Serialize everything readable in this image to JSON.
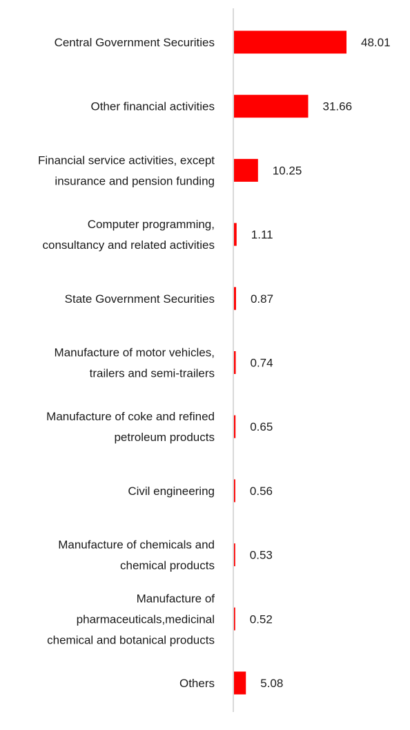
{
  "chart_data": {
    "type": "bar",
    "orientation": "horizontal",
    "categories": [
      "Central Government Securities",
      "Other financial activities",
      "Financial service activities, except insurance and pension funding",
      "Computer programming, consultancy and related activities",
      "State Government Securities",
      "Manufacture of motor vehicles, trailers and semi-trailers",
      "Manufacture of coke and refined petroleum products",
      "Civil engineering",
      "Manufacture of chemicals and chemical products",
      "Manufacture of pharmaceuticals,medicinal chemical and botanical products",
      "Others"
    ],
    "category_lines": [
      [
        "Central Government Securities"
      ],
      [
        "Other financial activities"
      ],
      [
        "Financial service activities, except",
        "insurance and pension funding"
      ],
      [
        "Computer programming,",
        "consultancy and related activities"
      ],
      [
        "State Government Securities"
      ],
      [
        "Manufacture of motor vehicles,",
        "trailers and semi-trailers"
      ],
      [
        "Manufacture of coke and refined",
        "petroleum products"
      ],
      [
        "Civil engineering"
      ],
      [
        "Manufacture of chemicals and",
        "chemical products"
      ],
      [
        "Manufacture of",
        "pharmaceuticals,medicinal",
        "chemical and botanical products"
      ],
      [
        "Others"
      ]
    ],
    "values": [
      48.01,
      31.66,
      10.25,
      1.11,
      0.87,
      0.74,
      0.65,
      0.56,
      0.53,
      0.52,
      5.08
    ],
    "value_labels": [
      "48.01",
      "31.66",
      "10.25",
      "1.11",
      "0.87",
      "0.74",
      "0.65",
      "0.56",
      "0.53",
      "0.52",
      "5.08"
    ],
    "title": "",
    "xlabel": "",
    "ylabel": "",
    "xlim": [
      0,
      48.01
    ],
    "grid": false,
    "legend": "none",
    "bar_color": "#ff0000",
    "axis_color": "#d9d9d9"
  }
}
